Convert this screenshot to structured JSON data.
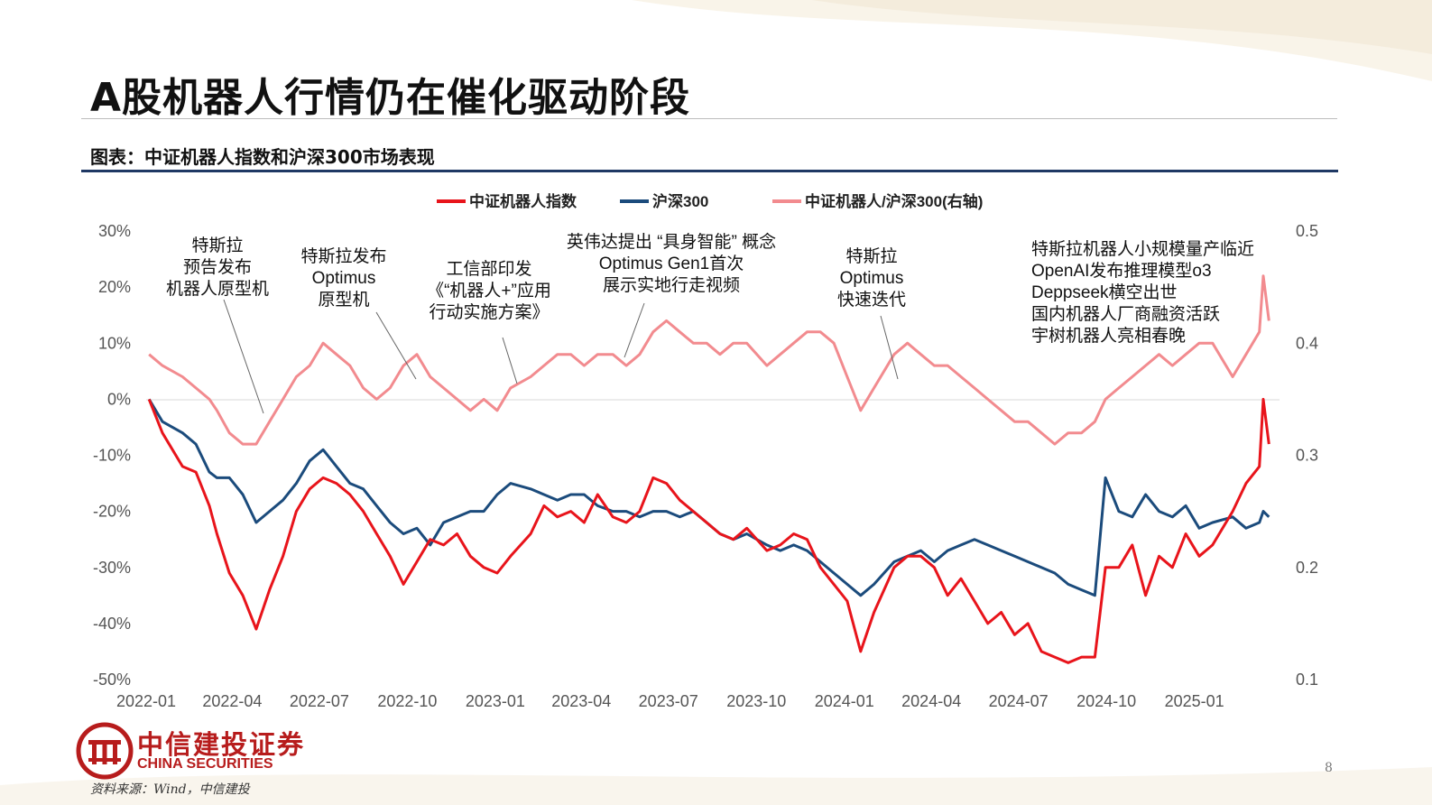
{
  "page": {
    "title": "A股机器人行情仍在催化驱动阶段",
    "caption": "图表：中证机器人指数和沪深300市场表现",
    "logo_cn": "中信建投证券",
    "logo_en": "CHINA SECURITIES",
    "source": "资料来源：Wind，中信建投",
    "page_number": "8",
    "brand_color": "#b71c1c"
  },
  "chart_data": {
    "type": "line",
    "x": [
      "2022-01-04",
      "2022-01-18",
      "2022-02-08",
      "2022-02-22",
      "2022-03-08",
      "2022-03-16",
      "2022-03-29",
      "2022-04-12",
      "2022-04-26",
      "2022-05-10",
      "2022-05-24",
      "2022-06-07",
      "2022-06-21",
      "2022-07-05",
      "2022-07-19",
      "2022-08-02",
      "2022-08-16",
      "2022-08-30",
      "2022-09-13",
      "2022-09-27",
      "2022-10-11",
      "2022-10-25",
      "2022-11-08",
      "2022-11-22",
      "2022-12-06",
      "2022-12-20",
      "2023-01-03",
      "2023-01-17",
      "2023-02-07",
      "2023-02-21",
      "2023-03-07",
      "2023-03-21",
      "2023-04-04",
      "2023-04-18",
      "2023-05-04",
      "2023-05-18",
      "2023-06-01",
      "2023-06-15",
      "2023-06-29",
      "2023-07-13",
      "2023-07-27",
      "2023-08-10",
      "2023-08-24",
      "2023-09-07",
      "2023-09-21",
      "2023-10-12",
      "2023-10-26",
      "2023-11-09",
      "2023-11-23",
      "2023-12-07",
      "2023-12-21",
      "2024-01-04",
      "2024-01-18",
      "2024-02-01",
      "2024-02-22",
      "2024-03-07",
      "2024-03-21",
      "2024-04-04",
      "2024-04-18",
      "2024-05-02",
      "2024-05-16",
      "2024-05-30",
      "2024-06-13",
      "2024-06-27",
      "2024-07-11",
      "2024-07-25",
      "2024-08-08",
      "2024-08-22",
      "2024-09-05",
      "2024-09-19",
      "2024-09-30",
      "2024-10-14",
      "2024-10-28",
      "2024-11-11",
      "2024-11-25",
      "2024-12-09",
      "2024-12-23",
      "2025-01-06",
      "2025-01-20",
      "2025-02-10",
      "2025-02-24",
      "2025-03-10",
      "2025-03-14",
      "2025-03-20"
    ],
    "xlim": [
      "2022-01-01",
      "2025-03-31"
    ],
    "x_ticks": [
      "2022-01",
      "2022-04",
      "2022-07",
      "2022-10",
      "2023-01",
      "2023-04",
      "2023-07",
      "2023-10",
      "2024-01",
      "2024-04",
      "2024-07",
      "2024-10",
      "2025-01"
    ],
    "y_left_ticks": [
      "30%",
      "20%",
      "10%",
      "0%",
      "-10%",
      "-20%",
      "-30%",
      "-40%",
      "-50%"
    ],
    "y_right_ticks": [
      "0.5",
      "0.4",
      "0.3",
      "0.2",
      "0.1"
    ],
    "ylim_left": [
      -0.5,
      0.3
    ],
    "ylim_right": [
      0.1,
      0.5
    ],
    "grid": false,
    "legend_position": "top-center",
    "series": [
      {
        "name": "中证机器人指数",
        "axis": "left",
        "color": "#e8141b",
        "values": [
          0.0,
          -0.06,
          -0.12,
          -0.13,
          -0.19,
          -0.24,
          -0.31,
          -0.35,
          -0.41,
          -0.34,
          -0.28,
          -0.2,
          -0.16,
          -0.14,
          -0.15,
          -0.17,
          -0.2,
          -0.24,
          -0.28,
          -0.33,
          -0.29,
          -0.25,
          -0.26,
          -0.24,
          -0.28,
          -0.3,
          -0.31,
          -0.28,
          -0.24,
          -0.19,
          -0.21,
          -0.2,
          -0.22,
          -0.17,
          -0.21,
          -0.22,
          -0.2,
          -0.14,
          -0.15,
          -0.18,
          -0.2,
          -0.22,
          -0.24,
          -0.25,
          -0.23,
          -0.27,
          -0.26,
          -0.24,
          -0.25,
          -0.3,
          -0.33,
          -0.36,
          -0.45,
          -0.38,
          -0.3,
          -0.28,
          -0.28,
          -0.3,
          -0.35,
          -0.32,
          -0.36,
          -0.4,
          -0.38,
          -0.42,
          -0.4,
          -0.45,
          -0.46,
          -0.47,
          -0.46,
          -0.46,
          -0.3,
          -0.3,
          -0.26,
          -0.35,
          -0.28,
          -0.3,
          -0.24,
          -0.28,
          -0.26,
          -0.2,
          -0.15,
          -0.12,
          0.0,
          -0.08
        ]
      },
      {
        "name": "沪深300",
        "axis": "left",
        "color": "#1b4b7c",
        "values": [
          0.0,
          -0.04,
          -0.06,
          -0.08,
          -0.13,
          -0.14,
          -0.14,
          -0.17,
          -0.22,
          -0.2,
          -0.18,
          -0.15,
          -0.11,
          -0.09,
          -0.12,
          -0.15,
          -0.16,
          -0.19,
          -0.22,
          -0.24,
          -0.23,
          -0.26,
          -0.22,
          -0.21,
          -0.2,
          -0.2,
          -0.17,
          -0.15,
          -0.16,
          -0.17,
          -0.18,
          -0.17,
          -0.17,
          -0.19,
          -0.2,
          -0.2,
          -0.21,
          -0.2,
          -0.2,
          -0.21,
          -0.2,
          -0.22,
          -0.24,
          -0.25,
          -0.24,
          -0.26,
          -0.27,
          -0.26,
          -0.27,
          -0.29,
          -0.31,
          -0.33,
          -0.35,
          -0.33,
          -0.29,
          -0.28,
          -0.27,
          -0.29,
          -0.27,
          -0.26,
          -0.25,
          -0.26,
          -0.27,
          -0.28,
          -0.29,
          -0.3,
          -0.31,
          -0.33,
          -0.34,
          -0.35,
          -0.14,
          -0.2,
          -0.21,
          -0.17,
          -0.2,
          -0.21,
          -0.19,
          -0.23,
          -0.22,
          -0.21,
          -0.23,
          -0.22,
          -0.2,
          -0.21
        ]
      },
      {
        "name": "中证机器人/沪深300(右轴)",
        "axis": "right",
        "color": "#f28b8f",
        "values": [
          0.39,
          0.38,
          0.37,
          0.36,
          0.35,
          0.34,
          0.32,
          0.31,
          0.31,
          0.33,
          0.35,
          0.37,
          0.38,
          0.4,
          0.39,
          0.38,
          0.36,
          0.35,
          0.36,
          0.38,
          0.39,
          0.37,
          0.36,
          0.35,
          0.34,
          0.35,
          0.34,
          0.36,
          0.37,
          0.38,
          0.39,
          0.39,
          0.38,
          0.39,
          0.39,
          0.38,
          0.39,
          0.41,
          0.42,
          0.41,
          0.4,
          0.4,
          0.39,
          0.4,
          0.4,
          0.38,
          0.39,
          0.4,
          0.41,
          0.41,
          0.4,
          0.37,
          0.34,
          0.36,
          0.39,
          0.4,
          0.39,
          0.38,
          0.38,
          0.37,
          0.36,
          0.35,
          0.34,
          0.33,
          0.33,
          0.32,
          0.31,
          0.32,
          0.32,
          0.33,
          0.35,
          0.36,
          0.37,
          0.38,
          0.39,
          0.38,
          0.39,
          0.4,
          0.4,
          0.37,
          0.39,
          0.41,
          0.46,
          0.42
        ]
      }
    ],
    "annotations": [
      {
        "lines": [
          "特斯拉",
          "预告发布",
          "机器人原型机"
        ],
        "date": "2022-04-20"
      },
      {
        "lines": [
          "特斯拉发布",
          "Optimus",
          "原型机"
        ],
        "date": "2022-10-01"
      },
      {
        "lines": [
          "工信部印发",
          "《“机器人+”应用",
          "行动实施方案》"
        ],
        "date": "2023-01-19"
      },
      {
        "lines": [
          "英伟达提出 “具身智能” 概念",
          "Optimus  Gen1首次",
          "展示实地行走视频"
        ],
        "date": "2023-05-10"
      },
      {
        "lines": [
          "特斯拉",
          "Optimus",
          "快速迭代"
        ],
        "date": "2024-01-04"
      },
      {
        "lines": [
          "特斯拉机器人小规模量产临近",
          "OpenAI发布推理模型o3",
          "Deppseek横空出世",
          "国内机器人厂商融资活跃",
          "宇树机器人亮相春晚"
        ],
        "date": ""
      }
    ]
  }
}
